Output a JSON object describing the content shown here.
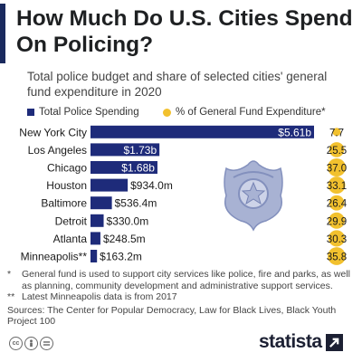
{
  "title": "How Much Do U.S. Cities Spend On Policing?",
  "subtitle": "Total police budget and share of selected cities' general fund expenditure in 2020",
  "legend": {
    "bar_label": "Total Police Spending",
    "dot_label": "% of General Fund Expenditure*"
  },
  "colors": {
    "bar": "#1e2b7a",
    "dot": "#f2c12e",
    "accent": "#1a2a5e",
    "badge": "#a8b2d3"
  },
  "chart_data": {
    "type": "bar",
    "orientation": "horizontal",
    "categories": [
      "New York City",
      "Los Angeles",
      "Chicago",
      "Houston",
      "Baltimore",
      "Detroit",
      "Atlanta",
      "Minneapolis**"
    ],
    "series": [
      {
        "name": "Total Police Spending",
        "unit": "USD",
        "values": [
          5610000000,
          1730000000,
          1680000000,
          934000000,
          536400000,
          330000000,
          248500000,
          163200000
        ],
        "labels": [
          "$5.61b",
          "$1.73b",
          "$1.68b",
          "$934.0m",
          "$536.4m",
          "$330.0m",
          "$248.5m",
          "$163.2m"
        ]
      },
      {
        "name": "% of General Fund Expenditure*",
        "unit": "%",
        "values": [
          7.7,
          25.5,
          37.0,
          33.1,
          26.4,
          29.9,
          30.3,
          35.8
        ],
        "labels": [
          "7.7",
          "25.5",
          "37.0",
          "33.1",
          "26.4",
          "29.9",
          "30.3",
          "35.8"
        ]
      }
    ],
    "legend_position": "top",
    "grid": false
  },
  "badge_icon": "police-badge-icon",
  "footnotes": [
    {
      "mark": "*",
      "text": "General fund is used to support city services like police, fire and parks, as well as planning, community development and administrative support services."
    },
    {
      "mark": "**",
      "text": "Latest Minneapolis data is from 2017"
    }
  ],
  "sources": "Sources: The Center for Popular Democracy, Law for Black Lives, Black Youth Project 100",
  "license_icons": [
    "cc-icon",
    "by-icon",
    "nd-icon"
  ],
  "brand": "statista"
}
